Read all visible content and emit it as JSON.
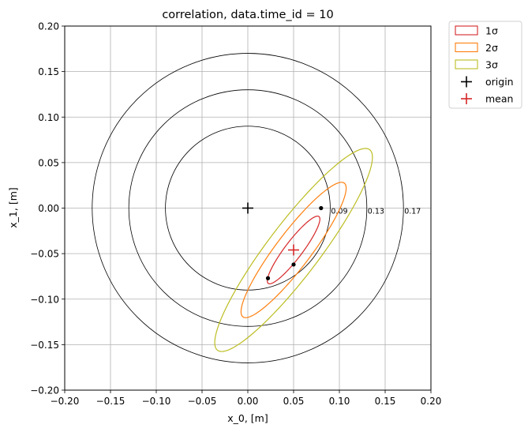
{
  "chart_data": {
    "type": "scatter",
    "title": "correlation, data.time_id = 10",
    "xlabel": "x_0, [m]",
    "ylabel": "x_1, [m]",
    "xlim": [
      -0.2,
      0.2
    ],
    "ylim": [
      -0.2,
      0.2
    ],
    "xticks": [
      -0.2,
      -0.15,
      -0.1,
      -0.05,
      0.0,
      0.05,
      0.1,
      0.15,
      0.2
    ],
    "yticks": [
      -0.2,
      -0.15,
      -0.1,
      -0.05,
      0.0,
      0.05,
      0.1,
      0.15,
      0.2
    ],
    "xtick_labels": [
      "−0.20",
      "−0.15",
      "−0.10",
      "−0.05",
      "0.00",
      "0.05",
      "0.10",
      "0.15",
      "0.20"
    ],
    "ytick_labels": [
      "−0.20",
      "−0.15",
      "−0.10",
      "−0.05",
      "0.00",
      "0.05",
      "0.10",
      "0.15",
      "0.20"
    ],
    "grid": true,
    "legend_position": "outside-top-right",
    "reference_circles": [
      {
        "radius": 0.09,
        "label": "0.09"
      },
      {
        "radius": 0.13,
        "label": "0.13"
      },
      {
        "radius": 0.17,
        "label": "0.17"
      }
    ],
    "covariance": {
      "center": [
        0.05,
        -0.046
      ],
      "semi_major": 0.046,
      "semi_minor": 0.0095,
      "angle_deg": 53
    },
    "ellipses": [
      {
        "name": "1σ",
        "scale": 1,
        "color": "#d62728"
      },
      {
        "name": "2σ",
        "scale": 2,
        "color": "#ff7f0e"
      },
      {
        "name": "3σ",
        "scale": 3,
        "color": "#bcbd22"
      }
    ],
    "points": [
      {
        "x": 0.08,
        "y": 0.0
      },
      {
        "x": 0.05,
        "y": -0.062
      },
      {
        "x": 0.022,
        "y": -0.077
      }
    ],
    "origin": {
      "name": "origin",
      "x": 0.0,
      "y": 0.0,
      "color": "#000000"
    },
    "mean": {
      "name": "mean",
      "x": 0.05,
      "y": -0.046,
      "color": "#d62728"
    }
  }
}
